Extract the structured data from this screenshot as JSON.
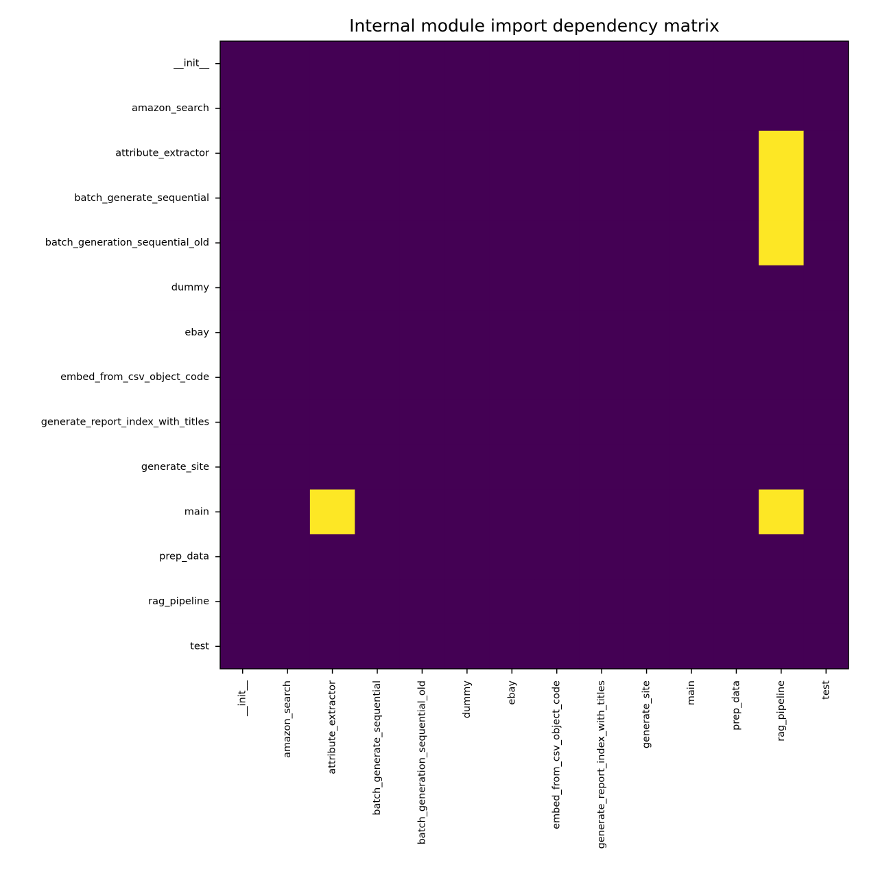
{
  "chart_data": {
    "type": "heatmap",
    "title": "Internal module import dependency matrix",
    "xlabel": "",
    "ylabel": "",
    "rows": [
      "__init__",
      "amazon_search",
      "attribute_extractor",
      "batch_generate_sequential",
      "batch_generation_sequential_old",
      "dummy",
      "ebay",
      "embed_from_csv_object_code",
      "generate_report_index_with_titles",
      "generate_site",
      "main",
      "prep_data",
      "rag_pipeline",
      "test"
    ],
    "columns": [
      "__init__",
      "amazon_search",
      "attribute_extractor",
      "batch_generate_sequential",
      "batch_generation_sequential_old",
      "dummy",
      "ebay",
      "embed_from_csv_object_code",
      "generate_report_index_with_titles",
      "generate_site",
      "main",
      "prep_data",
      "rag_pipeline",
      "test"
    ],
    "values": [
      [
        0,
        0,
        0,
        0,
        0,
        0,
        0,
        0,
        0,
        0,
        0,
        0,
        0,
        0
      ],
      [
        0,
        0,
        0,
        0,
        0,
        0,
        0,
        0,
        0,
        0,
        0,
        0,
        0,
        0
      ],
      [
        0,
        0,
        0,
        0,
        0,
        0,
        0,
        0,
        0,
        0,
        0,
        0,
        1,
        0
      ],
      [
        0,
        0,
        0,
        0,
        0,
        0,
        0,
        0,
        0,
        0,
        0,
        0,
        1,
        0
      ],
      [
        0,
        0,
        0,
        0,
        0,
        0,
        0,
        0,
        0,
        0,
        0,
        0,
        1,
        0
      ],
      [
        0,
        0,
        0,
        0,
        0,
        0,
        0,
        0,
        0,
        0,
        0,
        0,
        0,
        0
      ],
      [
        0,
        0,
        0,
        0,
        0,
        0,
        0,
        0,
        0,
        0,
        0,
        0,
        0,
        0
      ],
      [
        0,
        0,
        0,
        0,
        0,
        0,
        0,
        0,
        0,
        0,
        0,
        0,
        0,
        0
      ],
      [
        0,
        0,
        0,
        0,
        0,
        0,
        0,
        0,
        0,
        0,
        0,
        0,
        0,
        0
      ],
      [
        0,
        0,
        0,
        0,
        0,
        0,
        0,
        0,
        0,
        0,
        0,
        0,
        0,
        0
      ],
      [
        0,
        0,
        1,
        0,
        0,
        0,
        0,
        0,
        0,
        0,
        0,
        0,
        1,
        0
      ],
      [
        0,
        0,
        0,
        0,
        0,
        0,
        0,
        0,
        0,
        0,
        0,
        0,
        0,
        0
      ],
      [
        0,
        0,
        0,
        0,
        0,
        0,
        0,
        0,
        0,
        0,
        0,
        0,
        0,
        0
      ],
      [
        0,
        0,
        0,
        0,
        0,
        0,
        0,
        0,
        0,
        0,
        0,
        0,
        0,
        0
      ]
    ],
    "colormap": "viridis",
    "colors": {
      "low": "#440154",
      "high": "#fde725"
    },
    "grid": false,
    "legend": "none"
  }
}
